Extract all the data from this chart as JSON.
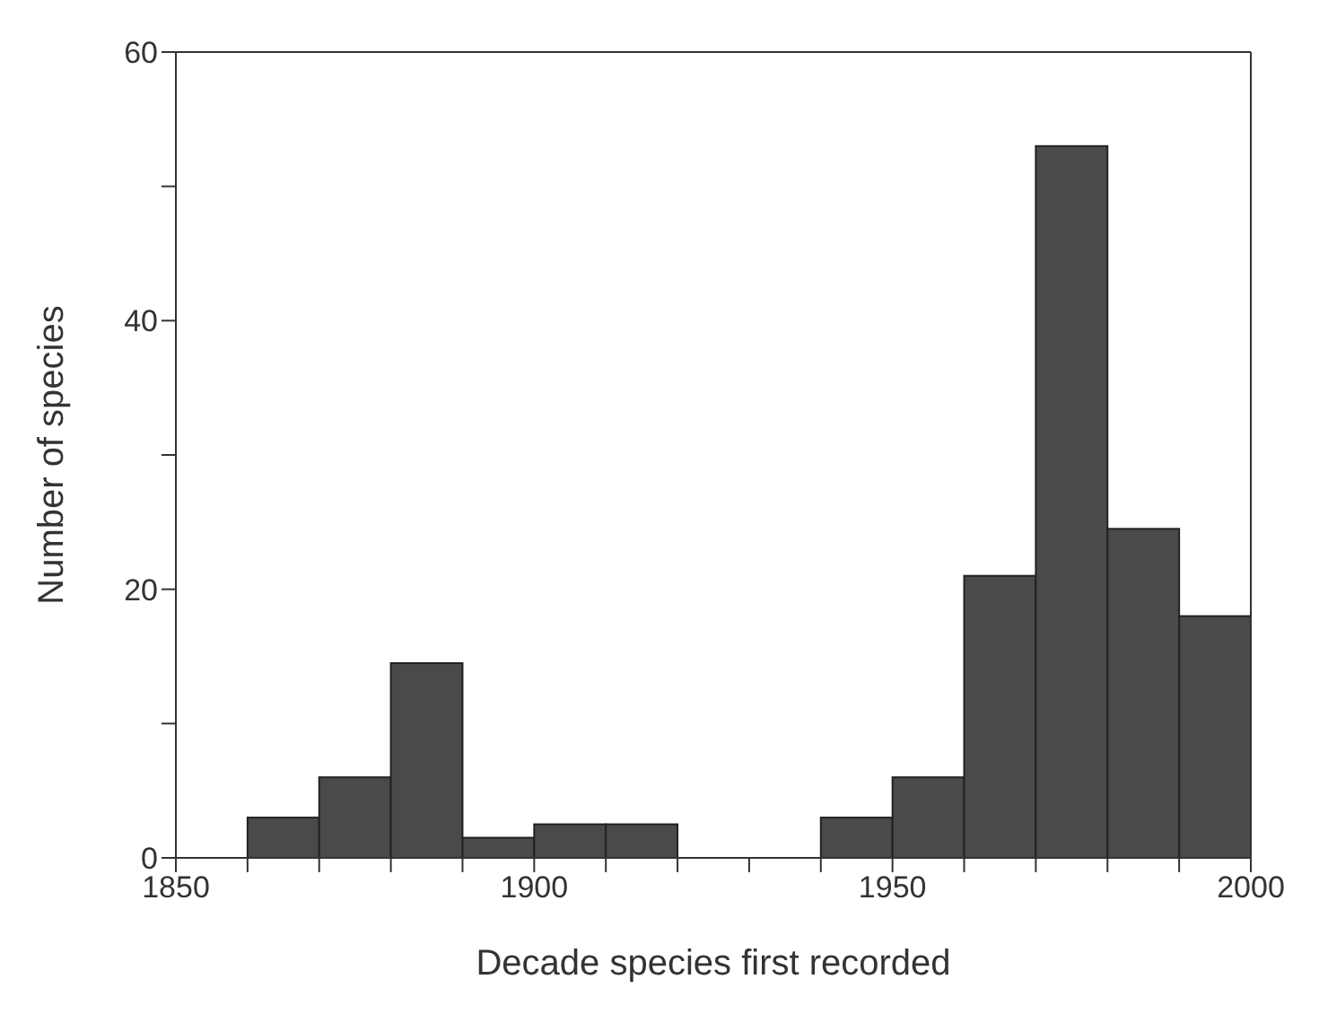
{
  "chart_data": {
    "type": "histogram",
    "xlabel": "Decade species first recorded",
    "ylabel": "Number of species",
    "bins": [
      1860,
      1870,
      1880,
      1890,
      1900,
      1910,
      1920,
      1930,
      1940,
      1950,
      1960,
      1970,
      1980,
      1990,
      2000
    ],
    "values": [
      3,
      6,
      14.5,
      1.5,
      2.5,
      2.5,
      0,
      0,
      3,
      6,
      21,
      53,
      24.5,
      18
    ],
    "color": "#4a4a4a",
    "xlim": [
      1850,
      2000
    ],
    "xticks": [
      1850,
      {
        "value": 1860,
        "label": null
      },
      {
        "value": 1870,
        "label": null
      },
      {
        "value": 1880,
        "label": null
      },
      {
        "value": 1890,
        "label": null
      },
      1900,
      {
        "value": 1910,
        "label": null
      },
      {
        "value": 1920,
        "label": null
      },
      {
        "value": 1930,
        "label": null
      },
      {
        "value": 1940,
        "label": null
      },
      1950,
      {
        "value": 1960,
        "label": null
      },
      {
        "value": 1970,
        "label": null
      },
      {
        "value": 1980,
        "label": null
      },
      {
        "value": 1990,
        "label": null
      },
      2000
    ],
    "ylim": [
      0,
      60
    ],
    "yticks": [
      0,
      {
        "value": 10,
        "label": null
      },
      20,
      {
        "value": 30,
        "label": null
      },
      40,
      {
        "value": 50,
        "label": null
      },
      60
    ],
    "grid": false,
    "legend": false
  }
}
